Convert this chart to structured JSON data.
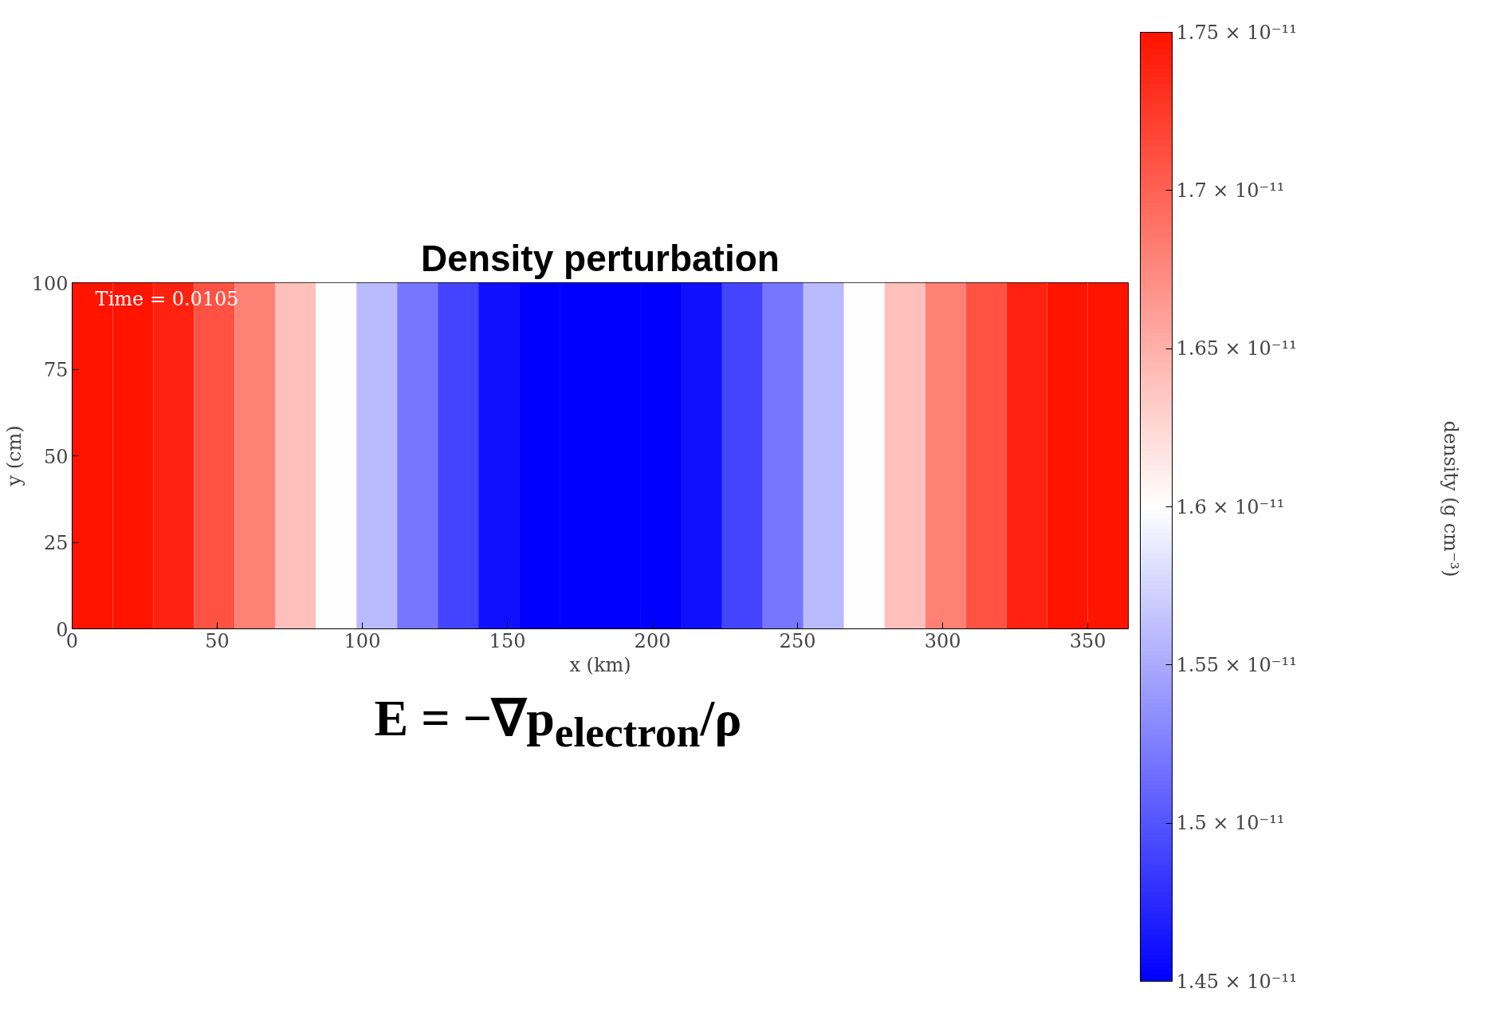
{
  "chart_data": {
    "type": "heatmap",
    "title": "Density perturbation",
    "xlabel": "x (km)",
    "ylabel": "y (cm)",
    "clabel": "density (g cm⁻³)",
    "x": [
      7,
      21,
      35,
      49,
      63,
      77,
      91,
      105,
      119,
      133,
      147,
      161,
      175,
      189,
      203,
      217,
      231,
      245,
      259,
      273,
      287,
      301,
      315,
      329,
      343,
      357
    ],
    "xlim": [
      0,
      364
    ],
    "xticks": [
      0,
      50,
      100,
      150,
      200,
      250,
      300,
      350
    ],
    "ylim": [
      0,
      100
    ],
    "yticks": [
      0,
      25,
      50,
      75,
      100
    ],
    "cells": [
      [
        1.75e-11,
        1.75e-11,
        1.74e-11,
        1.71e-11,
        1.68e-11,
        1.64e-11,
        1.6e-11,
        1.56e-11,
        1.52e-11,
        1.49e-11,
        1.46e-11,
        1.45e-11,
        1.45e-11,
        1.45e-11,
        1.45e-11,
        1.46e-11,
        1.49e-11,
        1.52e-11,
        1.56e-11,
        1.6e-11,
        1.64e-11,
        1.68e-11,
        1.71e-11,
        1.74e-11,
        1.75e-11,
        1.75e-11
      ]
    ],
    "clim": [
      1.45e-11,
      1.75e-11
    ],
    "cticks": [
      {
        "value": 1.45e-11,
        "label": "1.45 × 10⁻¹¹"
      },
      {
        "value": 1.5e-11,
        "label": "1.5 × 10⁻¹¹"
      },
      {
        "value": 1.55e-11,
        "label": "1.55 × 10⁻¹¹"
      },
      {
        "value": 1.6e-11,
        "label": "1.6 × 10⁻¹¹"
      },
      {
        "value": 1.65e-11,
        "label": "1.65 × 10⁻¹¹"
      },
      {
        "value": 1.7e-11,
        "label": "1.7 × 10⁻¹¹"
      },
      {
        "value": 1.75e-11,
        "label": "1.75 × 10⁻¹¹"
      }
    ],
    "grid": false,
    "annotations": [
      "Time = 0.0105",
      "E = −∇p$_{electron}$/ρ"
    ]
  }
}
